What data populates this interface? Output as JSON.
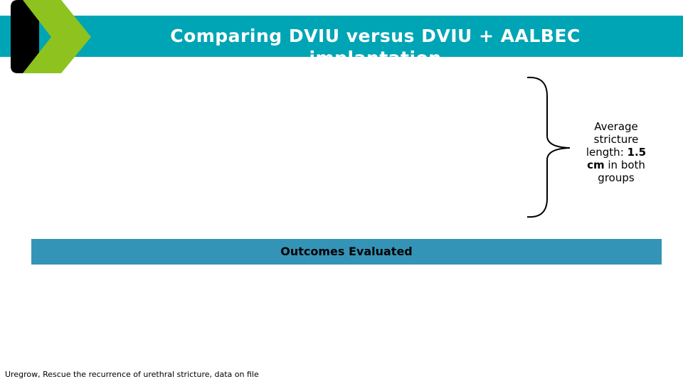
{
  "header": {
    "title": "Comparing DVIU versus DVIU + AALBEC implantation"
  },
  "callout": {
    "before": "Average stricture length:",
    "bold": "1.5 cm",
    "after": "in both groups"
  },
  "section": {
    "title": "Outcomes Evaluated"
  },
  "footer": {
    "source": "Uregrow, Rescue the recurrence of urethral stricture, data on file"
  }
}
